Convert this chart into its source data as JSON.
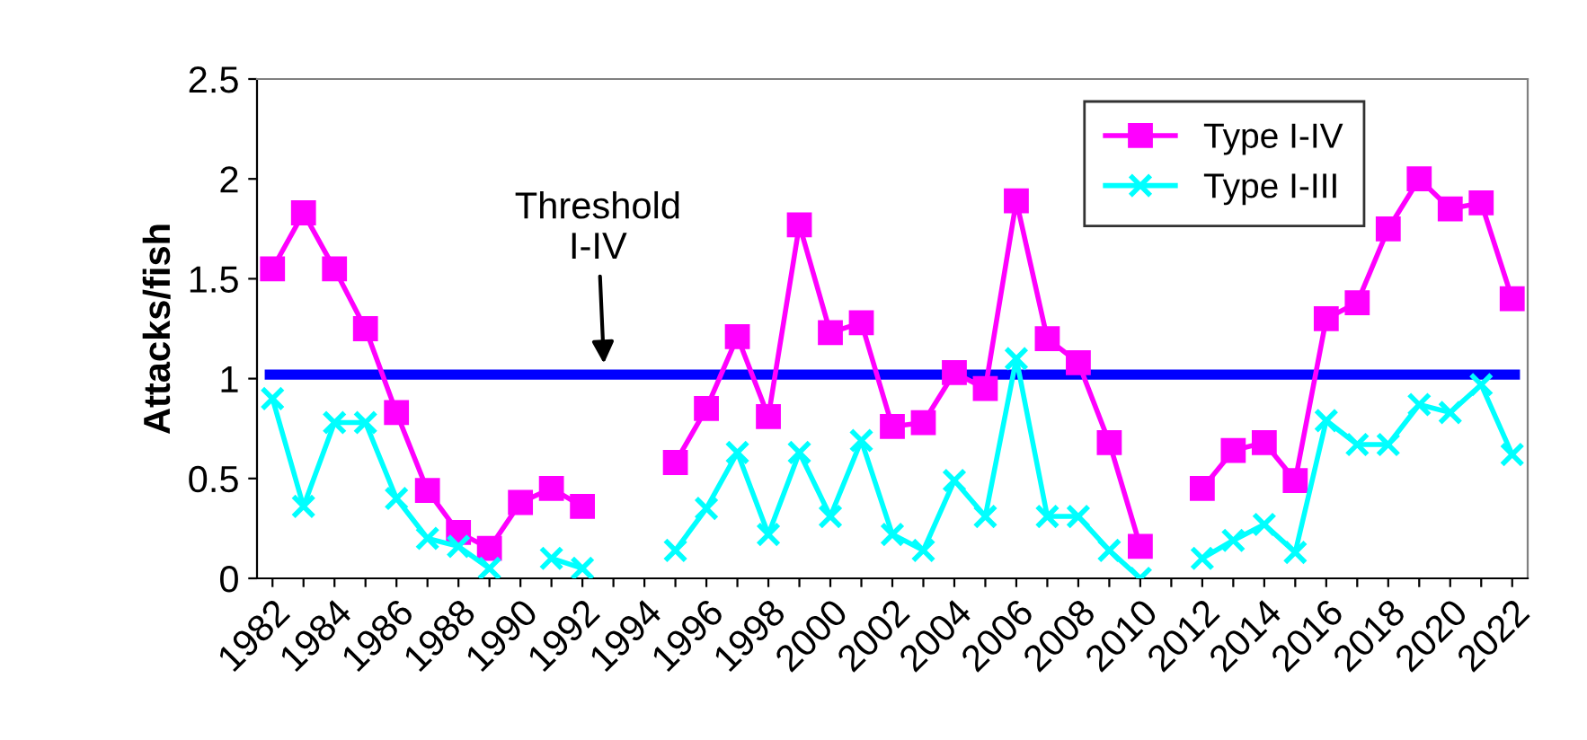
{
  "chart_data": {
    "type": "line",
    "ylabel": "Attacks/fish",
    "categories": [
      "1982",
      null,
      "1984",
      null,
      "1986",
      null,
      "1988",
      null,
      "1990",
      null,
      "1992",
      null,
      "1994",
      null,
      "1996",
      null,
      "1998",
      null,
      "2000",
      null,
      "2002",
      null,
      "2004",
      null,
      "2006",
      null,
      "2008",
      null,
      "2010",
      null,
      "2012",
      null,
      "2014",
      null,
      "2016",
      null,
      "2018",
      null,
      "2020",
      null,
      "2022"
    ],
    "series": [
      {
        "name": "Type I-IV",
        "color": "#ff00ff",
        "marker": "square",
        "values": [
          1.55,
          1.83,
          1.55,
          1.25,
          0.83,
          0.44,
          0.23,
          0.15,
          0.38,
          0.45,
          0.36,
          null,
          null,
          0.58,
          0.85,
          1.21,
          0.81,
          1.77,
          1.23,
          1.28,
          0.76,
          0.78,
          1.03,
          0.95,
          1.89,
          1.2,
          1.08,
          0.68,
          0.16,
          null,
          0.45,
          0.64,
          0.68,
          0.49,
          1.3,
          1.38,
          1.75,
          2.0,
          1.85,
          1.88,
          1.4
        ]
      },
      {
        "name": "Type I-III",
        "color": "#00ffff",
        "marker": "cross",
        "values": [
          0.9,
          0.36,
          0.78,
          0.78,
          0.4,
          0.2,
          0.16,
          0.05,
          null,
          0.1,
          0.05,
          null,
          null,
          0.14,
          0.35,
          0.63,
          0.22,
          0.63,
          0.31,
          0.69,
          0.22,
          0.14,
          0.49,
          0.31,
          1.1,
          0.31,
          0.31,
          0.14,
          0.0,
          null,
          0.1,
          0.19,
          0.27,
          0.13,
          0.79,
          0.67,
          0.67,
          0.87,
          0.83,
          0.97,
          0.62
        ]
      }
    ],
    "ylim": [
      0,
      2.5
    ],
    "yticks": [
      0,
      0.5,
      1,
      1.5,
      2,
      2.5
    ],
    "ref_lines": [
      {
        "axis": "y",
        "value": 1.02,
        "color": "#0000ff"
      }
    ],
    "annotations": [
      "Threshold\nI-IV"
    ],
    "legend": "top right",
    "grid": false
  }
}
